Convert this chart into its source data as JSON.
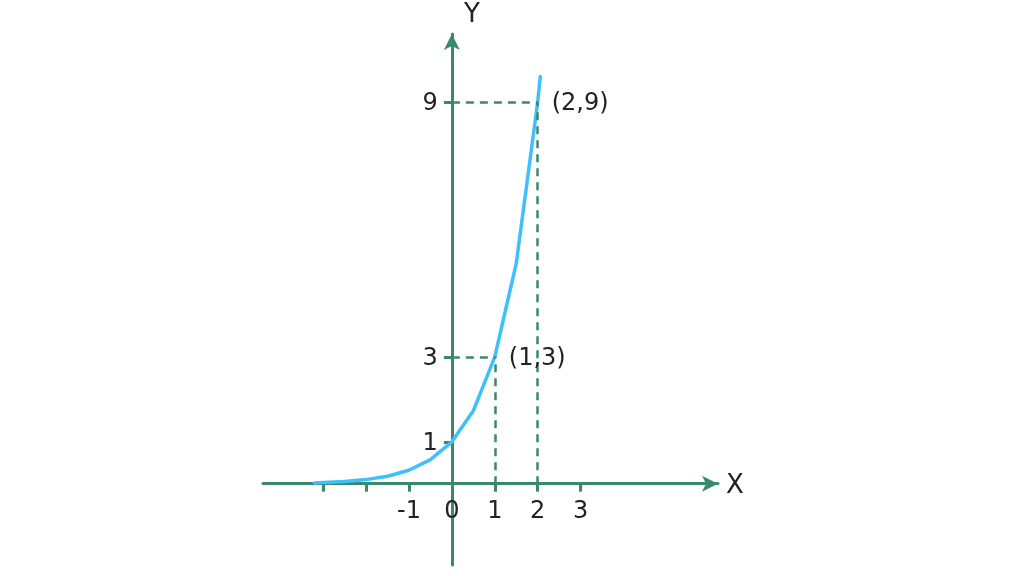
{
  "chart_data": {
    "type": "line",
    "xlabel": "X",
    "ylabel": "Y",
    "x": [
      -3.2,
      -3,
      -2.5,
      -2,
      -1.5,
      -1,
      -0.5,
      0,
      0.5,
      1,
      1.5,
      2,
      2.06
    ],
    "series": [
      {
        "color": "#40bfff",
        "values": [
          0.033,
          0.042,
          0.064,
          0.11,
          0.19,
          0.33,
          0.58,
          1,
          1.73,
          3,
          5.2,
          9,
          9.6
        ]
      }
    ],
    "xlim": [
      -4.4,
      6.2
    ],
    "ylim": [
      -1.9,
      10.6
    ],
    "xticks": [
      {
        "value": -3,
        "label": null
      },
      {
        "value": -2,
        "label": null
      },
      -1,
      0,
      1,
      2,
      3
    ],
    "yticks": [
      1,
      3,
      9
    ],
    "annotations": [
      {
        "text": "(2,9)",
        "x": 2,
        "y": 9
      },
      {
        "text": "(1,3)",
        "x": 1,
        "y": 3
      }
    ],
    "grid": false,
    "marker": "none",
    "line_style": "solid"
  }
}
